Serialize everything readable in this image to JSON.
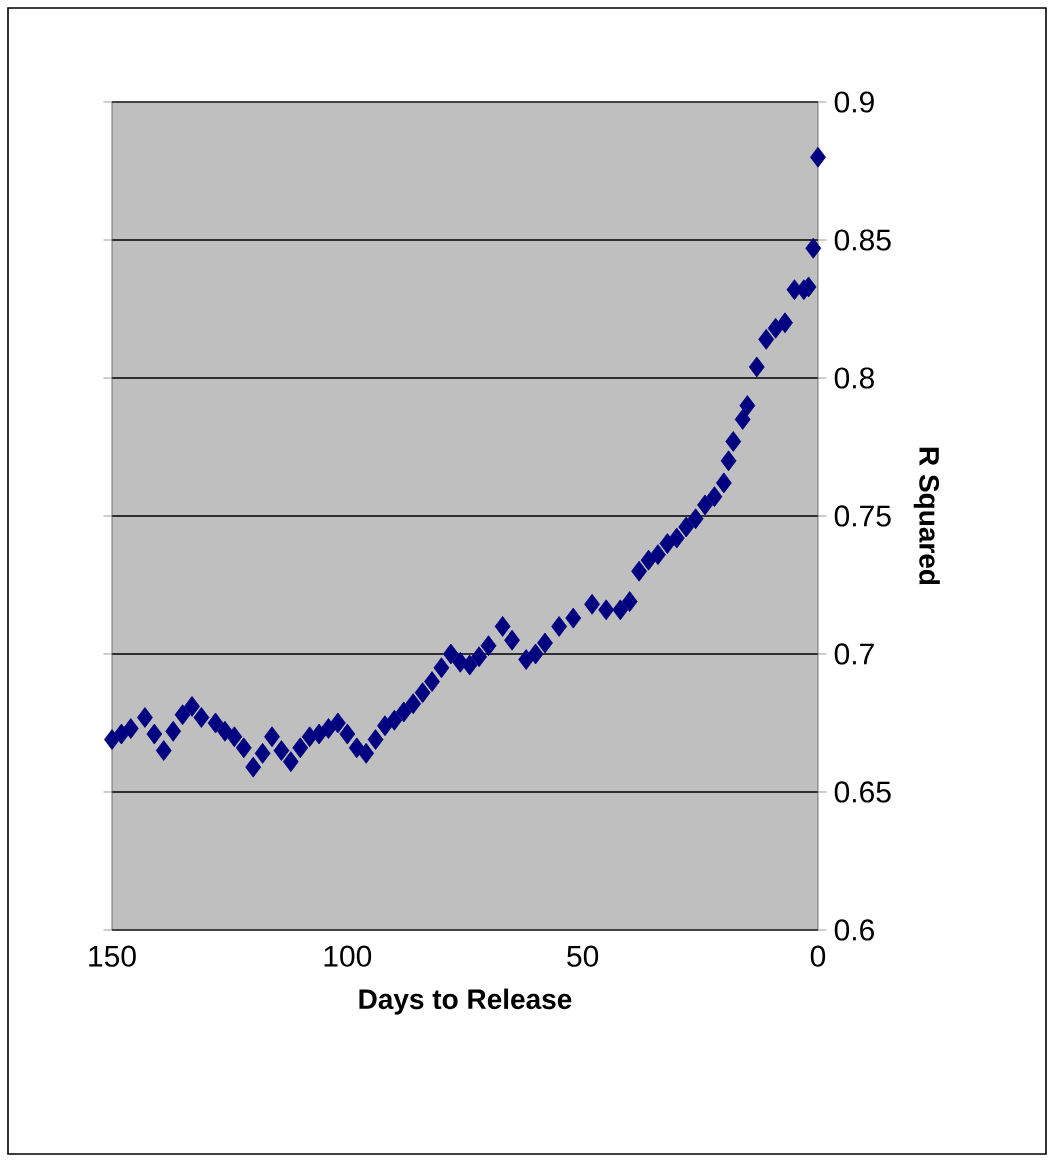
{
  "chart_data": {
    "type": "scatter",
    "xlabel": "Days to Release",
    "ylabel": "R Squared",
    "x": [
      150,
      148,
      146,
      143,
      141,
      139,
      137,
      135,
      133,
      131,
      128,
      126,
      124,
      122,
      120,
      118,
      116,
      114,
      112,
      110,
      108,
      106,
      104,
      102,
      100,
      98,
      96,
      94,
      92,
      90,
      88,
      86,
      84,
      82,
      80,
      78,
      76,
      74,
      72,
      70,
      67,
      65,
      62,
      60,
      58,
      55,
      52,
      48,
      45,
      42,
      40,
      38,
      36,
      34,
      32,
      30,
      28,
      26,
      24,
      22,
      20,
      19,
      18,
      16,
      15,
      13,
      11,
      9,
      7,
      5,
      3,
      2,
      1,
      0
    ],
    "values": [
      0.669,
      0.671,
      0.673,
      0.677,
      0.671,
      0.665,
      0.672,
      0.678,
      0.681,
      0.677,
      0.675,
      0.672,
      0.67,
      0.666,
      0.659,
      0.664,
      0.67,
      0.665,
      0.661,
      0.666,
      0.67,
      0.671,
      0.673,
      0.675,
      0.671,
      0.666,
      0.664,
      0.669,
      0.674,
      0.676,
      0.679,
      0.682,
      0.686,
      0.69,
      0.695,
      0.7,
      0.697,
      0.696,
      0.699,
      0.703,
      0.71,
      0.705,
      0.698,
      0.7,
      0.704,
      0.71,
      0.713,
      0.718,
      0.716,
      0.716,
      0.719,
      0.73,
      0.734,
      0.736,
      0.74,
      0.742,
      0.746,
      0.749,
      0.754,
      0.757,
      0.762,
      0.77,
      0.777,
      0.785,
      0.79,
      0.804,
      0.814,
      0.818,
      0.82,
      0.832,
      0.832,
      0.833,
      0.847,
      0.88
    ],
    "color": "#000080",
    "marker": "diamond",
    "grid": "y",
    "xlim": [
      150,
      0
    ],
    "xticks": [
      150,
      100,
      50,
      0
    ],
    "ylim": [
      0.6,
      0.9
    ],
    "yticks": [
      0.6,
      0.65,
      0.7,
      0.75,
      0.8,
      0.85,
      0.9
    ]
  }
}
